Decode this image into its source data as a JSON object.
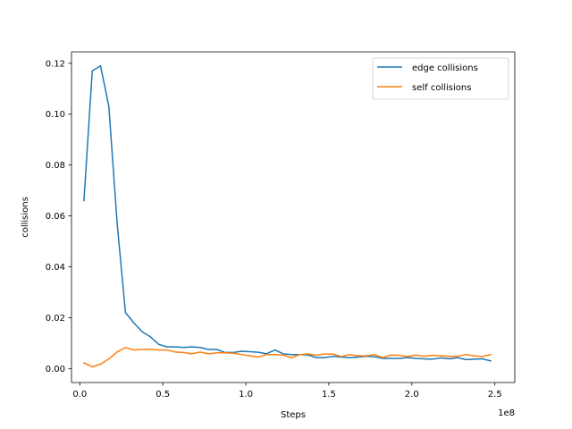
{
  "chart_data": {
    "type": "line",
    "xlabel": "Steps",
    "ylabel": "collisions",
    "x_offset_label": "1e8",
    "x_scale_factor": 100000000,
    "xlim": [
      -5000000,
      262000000
    ],
    "ylim": [
      -0.0055,
      0.1245
    ],
    "xticks": [
      0,
      50000000,
      100000000,
      150000000,
      200000000,
      250000000
    ],
    "xtick_labels": [
      "0.0",
      "0.5",
      "1.0",
      "1.5",
      "2.0",
      "2.5"
    ],
    "yticks": [
      0.0,
      0.02,
      0.04,
      0.06,
      0.08,
      0.1,
      0.12
    ],
    "ytick_labels": [
      "0.00",
      "0.02",
      "0.04",
      "0.06",
      "0.08",
      "0.10",
      "0.12"
    ],
    "grid": false,
    "legend_position": "top-right",
    "x": [
      2500000,
      7500000,
      12500000,
      17500000,
      22500000,
      27500000,
      32500000,
      37500000,
      42500000,
      47500000,
      52500000,
      57500000,
      62500000,
      67500000,
      72500000,
      77500000,
      82500000,
      87500000,
      92500000,
      97500000,
      102500000,
      107500000,
      112500000,
      117500000,
      122500000,
      127500000,
      132500000,
      137500000,
      142500000,
      147500000,
      152500000,
      157500000,
      162500000,
      167500000,
      172500000,
      177500000,
      182500000,
      187500000,
      192500000,
      197500000,
      202500000,
      207500000,
      212500000,
      217500000,
      222500000,
      227500000,
      232500000,
      237500000,
      242500000,
      247500000
    ],
    "series": [
      {
        "name": "edge collisions",
        "color": "#1f77b4",
        "values": [
          0.066,
          0.117,
          0.119,
          0.103,
          0.057,
          0.022,
          0.018,
          0.0145,
          0.0125,
          0.0095,
          0.0085,
          0.0085,
          0.0083,
          0.0085,
          0.0083,
          0.0075,
          0.0075,
          0.0063,
          0.0063,
          0.0068,
          0.0066,
          0.0064,
          0.0058,
          0.0073,
          0.0058,
          0.0055,
          0.0055,
          0.0053,
          0.0043,
          0.0043,
          0.0048,
          0.0045,
          0.0043,
          0.0045,
          0.0048,
          0.0047,
          0.004,
          0.004,
          0.004,
          0.0043,
          0.004,
          0.0038,
          0.0037,
          0.0042,
          0.0038,
          0.0043,
          0.0035,
          0.0037,
          0.0038,
          0.003
        ]
      },
      {
        "name": "self collisions",
        "color": "#ff7f0e",
        "values": [
          0.0022,
          0.0007,
          0.0017,
          0.0038,
          0.0065,
          0.0082,
          0.0073,
          0.0075,
          0.0076,
          0.0073,
          0.0073,
          0.0065,
          0.0063,
          0.0058,
          0.0065,
          0.0058,
          0.0062,
          0.0062,
          0.006,
          0.0055,
          0.005,
          0.0045,
          0.0055,
          0.0055,
          0.0053,
          0.0043,
          0.0055,
          0.0057,
          0.0052,
          0.0057,
          0.0057,
          0.0047,
          0.0055,
          0.005,
          0.005,
          0.0055,
          0.0043,
          0.0053,
          0.0052,
          0.0047,
          0.0053,
          0.0048,
          0.0052,
          0.005,
          0.0048,
          0.0048,
          0.0055,
          0.005,
          0.0047,
          0.0055
        ]
      }
    ]
  }
}
